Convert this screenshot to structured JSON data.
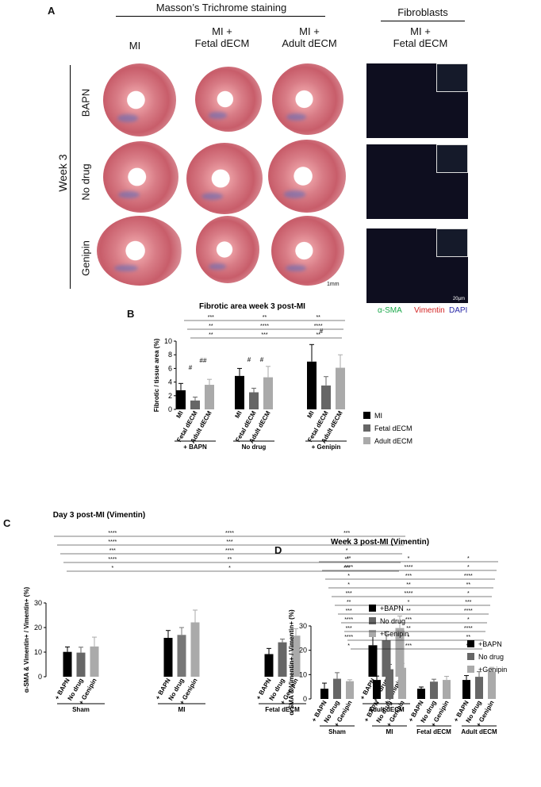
{
  "panelA": {
    "letter": "A",
    "title": "Masson’s Trichrome staining",
    "fibro_title": "Fibroblasts",
    "columns": [
      "MI",
      "MI +\nFetal dECM",
      "MI +\nAdult dECM"
    ],
    "fibro_col": "MI +\nFetal dECM",
    "week": "Week 3",
    "rows": [
      "BAPN",
      "No drug",
      "Genipin"
    ],
    "scale1": "1mm",
    "scale2": "20µm",
    "stains": [
      {
        "label": "α-SMA",
        "color": "#1aa84a"
      },
      {
        "label": "Vimentin",
        "color": "#d21f1f"
      },
      {
        "label": "DAPI",
        "color": "#2a2aa8"
      }
    ]
  },
  "chart_data": [
    {
      "panel": "B",
      "type": "bar",
      "title": "Fibrotic area week 3 post-MI",
      "ylabel": "Fibrotic / tissue area (%)",
      "ylim": [
        0,
        10
      ],
      "yticks": [
        0,
        2,
        4,
        6,
        8,
        10
      ],
      "groups": [
        "+ BAPN",
        "No drug",
        "+ Genipin"
      ],
      "bar_labels": [
        "MI",
        "Fetal dECM",
        "Adult dECM"
      ],
      "series": [
        {
          "name": "MI",
          "color": "#000000",
          "values": [
            2.8,
            4.9,
            7.0
          ],
          "err": [
            1.0,
            1.1,
            2.5
          ]
        },
        {
          "name": "Fetal dECM",
          "color": "#666666",
          "values": [
            1.3,
            2.5,
            3.5
          ],
          "err": [
            0.5,
            0.6,
            1.3
          ]
        },
        {
          "name": "Adult dECM",
          "color": "#aaaaaa",
          "values": [
            3.6,
            4.7,
            6.1
          ],
          "err": [
            0.8,
            1.6,
            1.9
          ]
        }
      ],
      "annotations": [
        "#",
        "##",
        "#",
        "#",
        "#"
      ],
      "sig_top": [
        "***",
        "**",
        "**",
        "**",
        "****",
        "****",
        "**",
        "***",
        "**"
      ]
    },
    {
      "panel": "C",
      "type": "bar",
      "title": "Day 3 post-MI (Vimentin)",
      "ylabel": "α-SMA & Vimentin+ / Vimentin+ (%)",
      "ylim": [
        0,
        30
      ],
      "yticks": [
        0,
        10,
        20,
        30
      ],
      "groups": [
        "Sham",
        "MI",
        "Fetal dECM",
        "Adult dECM"
      ],
      "bar_labels": [
        "+ BAPN",
        "No drug",
        "+ Genipin"
      ],
      "series": [
        {
          "name": "+BAPN",
          "color": "#000000",
          "values": [
            10.1,
            15.8,
            9.2,
            12.8
          ],
          "err": [
            2.0,
            3.0,
            2.3,
            3.5
          ]
        },
        {
          "name": "No drug",
          "color": "#666666",
          "values": [
            9.8,
            17.0,
            14.0,
            14.8
          ],
          "err": [
            2.2,
            3.0,
            1.3,
            3.5
          ]
        },
        {
          "name": "+Genipin",
          "color": "#aaaaaa",
          "values": [
            12.3,
            22.1,
            16.7,
            19.8
          ],
          "err": [
            3.8,
            5.0,
            2.8,
            4.9
          ]
        }
      ],
      "sig": [
        "****",
        "****",
        "***",
        "****",
        "***",
        "*",
        "***",
        "****",
        "*",
        "****",
        "**",
        "**",
        "*",
        "*",
        "***"
      ]
    },
    {
      "panel": "D",
      "type": "bar",
      "title": "Week 3 post-MI (Vimentin)",
      "ylabel": "α-SMA & Vimentin+ / Vimentin+ (%)",
      "ylim": [
        0,
        30
      ],
      "yticks": [
        0,
        10,
        20,
        30
      ],
      "groups": [
        "Sham",
        "MI",
        "Fetal dECM",
        "Adult dECM"
      ],
      "bar_labels": [
        "+ BAPN",
        "No drug",
        "+ Genipin"
      ],
      "series": [
        {
          "name": "+BAPN",
          "color": "#000000",
          "values": [
            4.2,
            7.8,
            4.2,
            7.8
          ],
          "err": [
            2.3,
            1.6,
            0.7,
            1.8
          ]
        },
        {
          "name": "No drug",
          "color": "#666666",
          "values": [
            8.3,
            12.2,
            7.1,
            9.1
          ],
          "err": [
            2.5,
            2.0,
            1.0,
            2.1
          ]
        },
        {
          "name": "+Genipin",
          "color": "#aaaaaa",
          "values": [
            7.3,
            12.8,
            7.8,
            11.2
          ],
          "err": [
            0.6,
            1.8,
            1.5,
            1.8
          ]
        }
      ],
      "sig": [
        "**",
        "*",
        "*",
        "****",
        "****",
        "*",
        "*",
        "***",
        "****",
        "*",
        "**",
        "**",
        "***",
        "****",
        "*",
        "**",
        "*",
        "***",
        "***",
        "**",
        "****",
        "****",
        "***",
        "*",
        "***",
        "**",
        "****",
        "****",
        "*",
        "**",
        "*",
        "***",
        "**"
      ]
    }
  ]
}
